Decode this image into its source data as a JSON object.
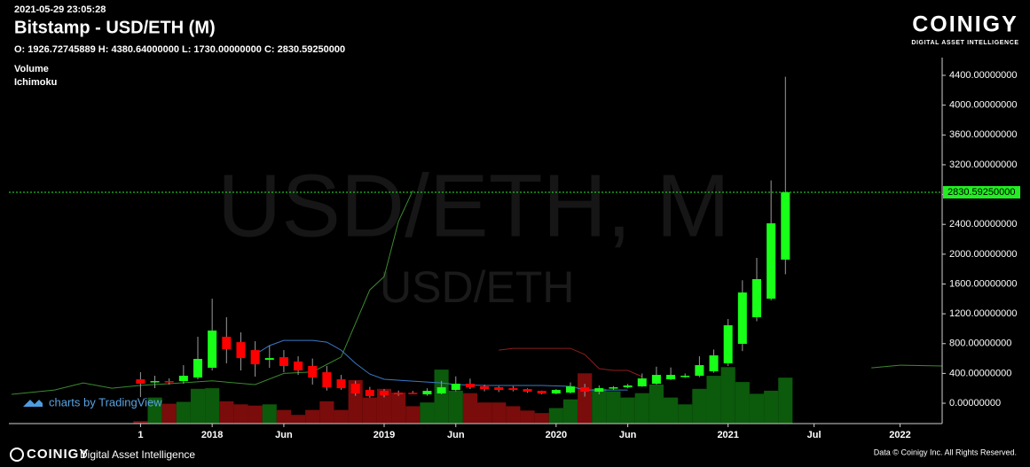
{
  "chart_data": {
    "type": "candlestick",
    "subtitle": "2021-05-29 23:05:28",
    "title": "Bitstamp - USD/ETH (M)",
    "ohlc_text": "O: 1926.72745889 H: 4380.64000000 L: 1730.00000000 C: 2830.59250000",
    "indicators": [
      "Volume",
      "Ichimoku"
    ],
    "watermark": "USD/ETH, M",
    "watermark_symbol": "USD/ETH",
    "x": [
      "2017-08",
      "2017-09",
      "2017-10",
      "2017-11",
      "2017-12",
      "2018-01",
      "2018-02",
      "2018-03",
      "2018-04",
      "2018-05",
      "2018-06",
      "2018-07",
      "2018-08",
      "2018-09",
      "2018-10",
      "2018-11",
      "2018-12",
      "2019-01",
      "2019-02",
      "2019-03",
      "2019-04",
      "2019-05",
      "2019-06",
      "2019-07",
      "2019-08",
      "2019-09",
      "2019-10",
      "2019-11",
      "2019-12",
      "2020-01",
      "2020-02",
      "2020-03",
      "2020-04",
      "2020-05",
      "2020-06",
      "2020-07",
      "2020-08",
      "2020-09",
      "2020-10",
      "2020-11",
      "2020-12",
      "2021-01",
      "2021-02",
      "2021-03",
      "2021-04",
      "2021-05"
    ],
    "open": [
      321,
      285,
      297,
      297,
      345,
      476,
      892,
      820,
      713,
      583,
      618,
      559,
      500,
      416,
      321,
      262,
      178,
      166,
      143,
      140,
      119,
      131,
      178,
      262,
      226,
      214,
      202,
      190,
      166,
      131,
      143,
      214,
      155,
      202,
      214,
      226,
      262,
      321,
      357,
      369,
      428,
      535,
      797,
      1154,
      1403,
      1926.72745889
    ],
    "high": [
      416,
      369,
      333,
      511,
      892,
      1403,
      1154,
      951,
      832,
      773,
      713,
      630,
      600,
      500,
      380,
      300,
      220,
      190,
      170,
      165,
      200,
      300,
      360,
      330,
      250,
      230,
      230,
      200,
      170,
      190,
      280,
      260,
      240,
      230,
      260,
      400,
      490,
      480,
      400,
      630,
      720,
      1130,
      1650,
      1950,
      2990,
      4380.64
    ],
    "low": [
      83,
      202,
      250,
      262,
      321,
      440,
      535,
      440,
      357,
      476,
      416,
      380,
      250,
      170,
      180,
      100,
      75,
      80,
      100,
      125,
      100,
      120,
      160,
      190,
      160,
      150,
      160,
      140,
      120,
      120,
      130,
      90,
      120,
      180,
      200,
      220,
      250,
      310,
      340,
      350,
      410,
      500,
      700,
      1100,
      1380,
      1730
    ],
    "close": [
      262,
      297,
      285,
      369,
      595,
      975,
      725,
      606,
      523,
      606,
      500,
      440,
      345,
      214,
      202,
      131,
      95,
      107,
      119,
      136,
      166,
      214,
      262,
      214,
      190,
      178,
      178,
      155,
      131,
      178,
      226,
      155,
      202,
      214,
      238,
      333,
      380,
      380,
      369,
      511,
      642,
      1046,
      1486,
      1665,
      2414,
      2830.5925
    ],
    "up_color": "#18ff18",
    "down_color": "#ff0000",
    "wick_color": "#9a9a9a",
    "volume": {
      "values": [
        4,
        42,
        32,
        35,
        56,
        57,
        36,
        31,
        29,
        31,
        22,
        14,
        22,
        36,
        22,
        70,
        42,
        56,
        50,
        28,
        34,
        87,
        53,
        49,
        34,
        34,
        28,
        21,
        17,
        25,
        39,
        81,
        56,
        52,
        42,
        49,
        63,
        42,
        31,
        56,
        77,
        91,
        67,
        48,
        53,
        74
      ],
      "ylim": [
        0,
        100
      ],
      "up_color": "#0c5a0c",
      "down_color": "#7a0c0c"
    },
    "ichimoku": [
      {
        "color": "#3c8a2e",
        "x": [
          "2016-11",
          "2017-02",
          "2017-04",
          "2017-06",
          "2017-08",
          "2017-10",
          "2018-01",
          "2018-04",
          "2018-06",
          "2018-08",
          "2018-10",
          "2018-12",
          "2019-01",
          "2019-02",
          "2019-03",
          "2019-04",
          "2021-11",
          "2022-01",
          "2022-04"
        ],
        "values": [
          119,
          178,
          273,
          202,
          240,
          262,
          300,
          250,
          400,
          420,
          620,
          1520,
          1700,
          2440,
          2853,
          null,
          475,
          511,
          500
        ]
      },
      {
        "color": "#3a78c8",
        "x": [
          "2018-04",
          "2018-05",
          "2018-06",
          "2018-08",
          "2018-09",
          "2018-10",
          "2018-11",
          "2018-12",
          "2019-01",
          "2019-03",
          "2019-05",
          "2019-06",
          "2019-08",
          "2019-12",
          "2020-02",
          "2020-03",
          "2020-05",
          "2020-06"
        ],
        "values": [
          654,
          773,
          844,
          844,
          820,
          713,
          535,
          392,
          321,
          297,
          273,
          250,
          238,
          238,
          226,
          178,
          178,
          178
        ]
      },
      {
        "color": "#8e1c1c",
        "x": [
          "2019-09",
          "2019-10",
          "2019-12",
          "2020-02",
          "2020-03",
          "2020-04",
          "2020-05",
          "2020-06",
          "2020-07"
        ],
        "values": [
          713,
          737,
          737,
          737,
          654,
          464,
          440,
          440,
          357
        ]
      }
    ],
    "last_price": {
      "value": 2830.5925,
      "label": "2830.59250000",
      "color": "#22ee22"
    },
    "xlim": [
      "2016-11",
      "2022-04"
    ],
    "xticks": [
      {
        "value": "2017-08",
        "label": "1"
      },
      {
        "value": "2018-01",
        "label": "2018"
      },
      {
        "value": "2018-06",
        "label": "Jun"
      },
      {
        "value": "2019-01",
        "label": "2019"
      },
      {
        "value": "2019-06",
        "label": "Jun"
      },
      {
        "value": "2020-01",
        "label": "2020"
      },
      {
        "value": "2020-06",
        "label": "Jun"
      },
      {
        "value": "2021-01",
        "label": "2021"
      },
      {
        "value": "2021-07",
        "label": "Jul"
      },
      {
        "value": "2022-01",
        "label": "2022"
      }
    ],
    "ylim": [
      -273,
      4638
    ],
    "yticks": [
      {
        "value": 0,
        "label": "0.00000000"
      },
      {
        "value": 400,
        "label": "400.00000000"
      },
      {
        "value": 800,
        "label": "800.00000000"
      },
      {
        "value": 1200,
        "label": "1200.00000000"
      },
      {
        "value": 1600,
        "label": "1600.00000000"
      },
      {
        "value": 2000,
        "label": "2000.00000000"
      },
      {
        "value": 2400,
        "label": "2400.00000000"
      },
      {
        "value": 2800,
        "label": "2800.00000000"
      },
      {
        "value": 3200,
        "label": "3200.00000000"
      },
      {
        "value": 3600,
        "label": "3600.00000000"
      },
      {
        "value": 4000,
        "label": "4000.00000000"
      },
      {
        "value": 4400,
        "label": "4400.00000000"
      }
    ],
    "attribution": "charts by TradingView"
  },
  "branding": {
    "logo": "COINIGY",
    "tagline": "DIGITAL ASSET INTELLIGENCE"
  },
  "footer": {
    "logo": "COINIGY",
    "tagline": "Digital Asset Intelligence",
    "copyright": "Data © Coinigy Inc. All Rights Reserved."
  }
}
